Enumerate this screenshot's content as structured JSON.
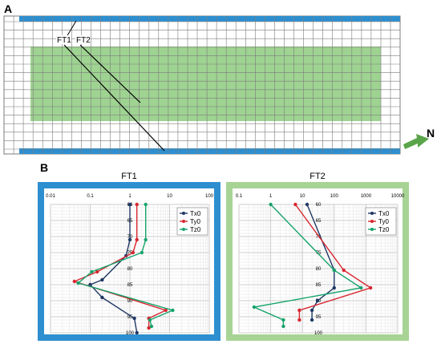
{
  "panel_a": {
    "label": "A",
    "line_labels": [
      "FT1",
      "FT2"
    ],
    "north_label": "N",
    "colors": {
      "blue_strip": "#2e8fd0",
      "green_zone": "#9ed391",
      "grid": "#7d7d7d",
      "arrow": "#5aa54a"
    }
  },
  "panel_b": {
    "label": "B",
    "colors": {
      "ft1_frame": "#2e8fd0",
      "ft2_frame": "#a7d495",
      "Tx0": "#1f3864",
      "Ty0": "#d8262f",
      "Tz0": "#16a36b"
    }
  },
  "chart_data": [
    {
      "type": "line",
      "title": "FT1",
      "x_scale": "log",
      "xlim": [
        0.01,
        100
      ],
      "x_ticks": [
        "0.01",
        "0.1",
        "1",
        "10",
        "100"
      ],
      "ylim": [
        60,
        100
      ],
      "y_inverted": true,
      "y_ticks": [
        "60",
        "65",
        "70",
        "75",
        "80",
        "85",
        "90",
        "95",
        "100"
      ],
      "grid": true,
      "legend": "top-right",
      "series": [
        {
          "name": "Tx0",
          "points": [
            [
              1.0,
              60
            ],
            [
              1.0,
              71
            ],
            [
              0.8,
              76
            ],
            [
              0.2,
              83.5
            ],
            [
              0.1,
              85
            ],
            [
              0.2,
              89
            ],
            [
              1.3,
              95.5
            ],
            [
              1.5,
              100
            ]
          ]
        },
        {
          "name": "Ty0",
          "points": [
            [
              1.5,
              60
            ],
            [
              1.5,
              71
            ],
            [
              1.2,
              75
            ],
            [
              0.15,
              81
            ],
            [
              0.04,
              84
            ],
            [
              8,
              93
            ],
            [
              3,
              95.5
            ],
            [
              3,
              98.5
            ]
          ]
        },
        {
          "name": "Tz0",
          "points": [
            [
              2.5,
              60
            ],
            [
              2.5,
              71
            ],
            [
              2.0,
              75
            ],
            [
              0.11,
              81
            ],
            [
              0.05,
              84.5
            ],
            [
              12,
              93
            ],
            [
              3.2,
              96
            ],
            [
              3.5,
              98
            ]
          ]
        }
      ]
    },
    {
      "type": "line",
      "title": "FT2",
      "x_scale": "log",
      "xlim": [
        0.1,
        10000
      ],
      "x_ticks": [
        "0.1",
        "1",
        "10",
        "100",
        "1000",
        "10000"
      ],
      "ylim": [
        60,
        100
      ],
      "y_inverted": true,
      "y_ticks": [
        "60",
        "65",
        "70",
        "75",
        "80",
        "85",
        "90",
        "95",
        "100"
      ],
      "grid": true,
      "legend": "top-right",
      "series": [
        {
          "name": "Tx0",
          "points": [
            [
              14,
              60
            ],
            [
              100,
              80.5
            ],
            [
              100,
              86
            ],
            [
              30,
              90
            ],
            [
              20,
              93
            ],
            [
              20,
              96
            ]
          ]
        },
        {
          "name": "Ty0",
          "points": [
            [
              6,
              60
            ],
            [
              200,
              80.5
            ],
            [
              1400,
              86
            ],
            [
              8,
              93
            ],
            [
              8,
              96
            ]
          ]
        },
        {
          "name": "Tz0",
          "points": [
            [
              1,
              60
            ],
            [
              100,
              80.5
            ],
            [
              700,
              86
            ],
            [
              0.3,
              92
            ],
            [
              2.5,
              96
            ],
            [
              2.5,
              98
            ]
          ]
        }
      ]
    }
  ]
}
